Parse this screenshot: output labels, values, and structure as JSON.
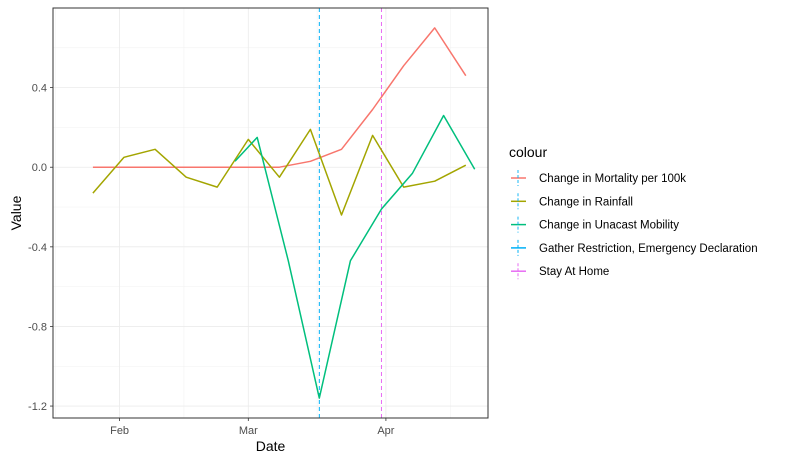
{
  "chart_data": {
    "type": "line",
    "xlabel": "Date",
    "ylabel": "Value",
    "x_ticks": [
      "Feb",
      "Mar",
      "Apr"
    ],
    "y_ticks": [
      "0.4",
      "0.0",
      "-0.4",
      "-0.8",
      "-1.2"
    ],
    "x_tick_values": [
      "2020-02-01",
      "2020-03-01",
      "2020-04-01"
    ],
    "y_tick_values": [
      0.4,
      0.0,
      -0.4,
      -0.8,
      -1.2
    ],
    "xlim": [
      "2020-01-17",
      "2020-04-24"
    ],
    "ylim": [
      -1.26,
      0.8
    ],
    "grid": true,
    "legend_position": "right",
    "legend": {
      "title": "colour",
      "items": [
        {
          "label": "Change in Mortality per 100k",
          "color": "#F8766D",
          "type": "line"
        },
        {
          "label": "Change in Rainfall",
          "color": "#A3A500",
          "type": "line"
        },
        {
          "label": "Change in Unacast Mobility",
          "color": "#00BF7D",
          "type": "line"
        },
        {
          "label": "Gather Restriction, Emergency Declaration",
          "color": "#00B0F6",
          "type": "vline"
        },
        {
          "label": "Stay At Home",
          "color": "#E76BF3",
          "type": "vline"
        }
      ]
    },
    "series": [
      {
        "name": "Change in Mortality per 100k",
        "color": "#F8766D",
        "x": [
          "2020-01-26",
          "2020-02-02",
          "2020-02-09",
          "2020-02-16",
          "2020-02-23",
          "2020-03-01",
          "2020-03-08",
          "2020-03-15",
          "2020-03-22",
          "2020-03-29",
          "2020-04-05",
          "2020-04-12",
          "2020-04-19"
        ],
        "y": [
          0.0,
          0.0,
          0.0,
          0.0,
          0.0,
          0.0,
          0.0,
          0.03,
          0.09,
          0.29,
          0.51,
          0.7,
          0.46
        ]
      },
      {
        "name": "Change in Rainfall",
        "color": "#A3A500",
        "x": [
          "2020-01-26",
          "2020-02-02",
          "2020-02-09",
          "2020-02-16",
          "2020-02-23",
          "2020-03-01",
          "2020-03-08",
          "2020-03-15",
          "2020-03-22",
          "2020-03-29",
          "2020-04-05",
          "2020-04-12",
          "2020-04-19"
        ],
        "y": [
          -0.13,
          0.05,
          0.09,
          -0.05,
          -0.1,
          0.14,
          -0.05,
          0.19,
          -0.24,
          0.16,
          -0.1,
          -0.07,
          0.01
        ]
      },
      {
        "name": "Change in Unacast Mobility",
        "color": "#00BF7D",
        "x": [
          "2020-02-27",
          "2020-03-03",
          "2020-03-10",
          "2020-03-17",
          "2020-03-24",
          "2020-03-31",
          "2020-04-07",
          "2020-04-14",
          "2020-04-21"
        ],
        "y": [
          0.03,
          0.15,
          -0.47,
          -1.16,
          -0.47,
          -0.21,
          -0.03,
          0.26,
          -0.01
        ]
      }
    ],
    "vlines": [
      {
        "name": "Gather Restriction, Emergency Declaration",
        "x": "2020-03-17",
        "color": "#00B0F6"
      },
      {
        "name": "Stay At Home",
        "x": "2020-03-31",
        "color": "#E76BF3"
      }
    ]
  }
}
